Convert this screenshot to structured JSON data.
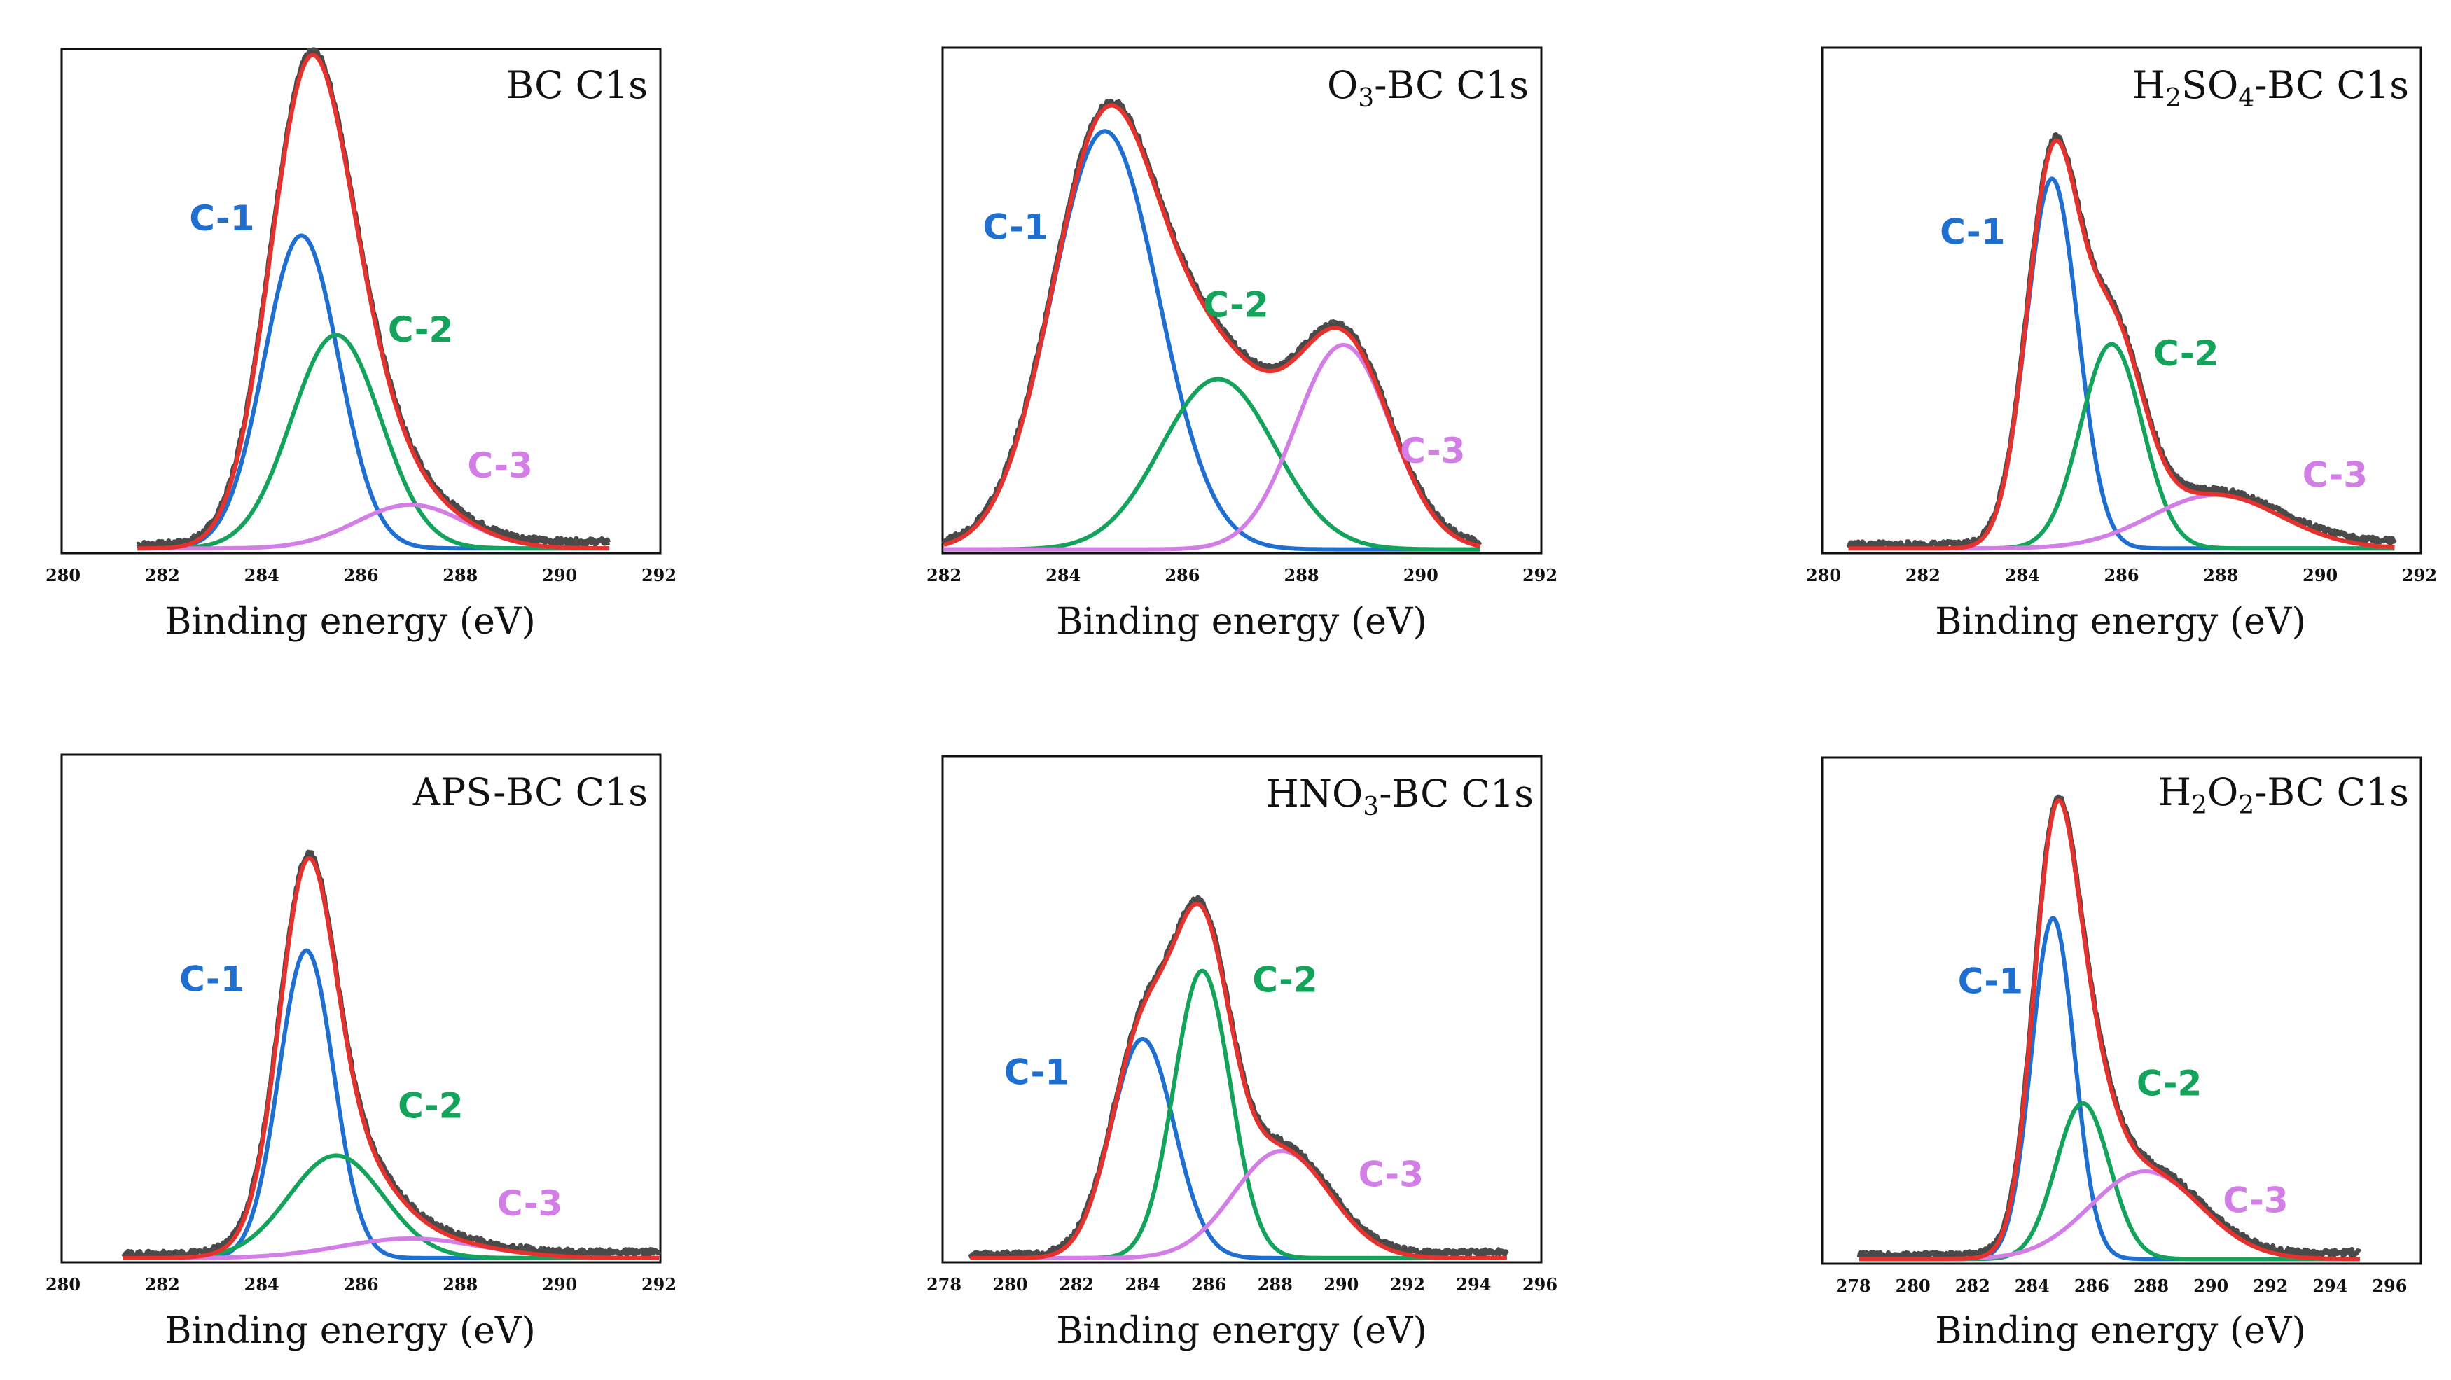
{
  "chart_data": [
    {
      "type": "line",
      "title_main": "BC C1s",
      "title_sub": "",
      "title_suffix": "",
      "xlabel": "Binding energy (eV)",
      "ylabel": "",
      "xlim": [
        280,
        292
      ],
      "ticks": [
        280,
        282,
        284,
        286,
        288,
        290,
        292
      ],
      "ylim": [
        0,
        1.0
      ],
      "xrange": [
        281.5,
        291
      ],
      "components": [
        {
          "name": "C-1",
          "color": "#1f6fd1",
          "center": 284.8,
          "height": 0.645,
          "sigma": 0.75,
          "label_at": [
            283.2,
            0.66
          ]
        },
        {
          "name": "C-2",
          "color": "#13a35a",
          "center": 285.5,
          "height": 0.44,
          "sigma": 0.9,
          "label_at": [
            287.2,
            0.43
          ]
        },
        {
          "name": "C-3",
          "color": "#d27ee6",
          "center": 287.0,
          "height": 0.09,
          "sigma": 1.1,
          "label_at": [
            288.8,
            0.15
          ]
        }
      ],
      "envelope_color": "#e5322d",
      "raw_color": "#4a4a4a",
      "baseline": 0.004,
      "tail": 0.006
    },
    {
      "type": "line",
      "title_main": "O",
      "title_sub": "3",
      "title_suffix": "-BC C1s",
      "xlabel": "Binding energy (eV)",
      "ylabel": "",
      "xlim": [
        282,
        292
      ],
      "ticks": [
        282,
        284,
        286,
        288,
        290,
        292
      ],
      "ylim": [
        0,
        1.0
      ],
      "xrange": [
        282,
        291
      ],
      "components": [
        {
          "name": "C-1",
          "color": "#1f6fd1",
          "center": 284.7,
          "height": 0.86,
          "sigma": 0.9,
          "label_at": [
            283.2,
            0.64
          ]
        },
        {
          "name": "C-2",
          "color": "#13a35a",
          "center": 286.6,
          "height": 0.35,
          "sigma": 0.95,
          "label_at": [
            286.9,
            0.48
          ]
        },
        {
          "name": "C-3",
          "color": "#d27ee6",
          "center": 288.7,
          "height": 0.42,
          "sigma": 0.8,
          "label_at": [
            290.2,
            0.18
          ]
        }
      ],
      "envelope_color": "#e5322d",
      "raw_color": "#4a4a4a",
      "baseline": 0.002,
      "tail": 0.0
    },
    {
      "type": "line",
      "title_main": "H",
      "title_sub": "2",
      "title_suffix": "SO",
      "title_sub2": "4",
      "title_suffix2": "-BC C1s",
      "xlabel": "Binding energy (eV)",
      "ylabel": "",
      "xlim": [
        280,
        292
      ],
      "ticks": [
        280,
        282,
        284,
        286,
        288,
        290,
        292
      ],
      "ylim": [
        0,
        1.0
      ],
      "xrange": [
        280.5,
        291.5
      ],
      "components": [
        {
          "name": "C-1",
          "color": "#1f6fd1",
          "center": 284.6,
          "height": 0.76,
          "sigma": 0.52,
          "label_at": [
            283.0,
            0.63
          ]
        },
        {
          "name": "C-2",
          "color": "#13a35a",
          "center": 285.8,
          "height": 0.42,
          "sigma": 0.62,
          "label_at": [
            287.3,
            0.38
          ]
        },
        {
          "name": "C-3",
          "color": "#d27ee6",
          "center": 287.9,
          "height": 0.11,
          "sigma": 1.3,
          "label_at": [
            290.3,
            0.13
          ]
        }
      ],
      "envelope_color": "#e5322d",
      "raw_color": "#4a4a4a",
      "baseline": 0.004,
      "tail": 0.004
    },
    {
      "type": "line",
      "title_main": "APS-BC C1s",
      "title_sub": "",
      "title_suffix": "",
      "xlabel": "Binding energy (eV)",
      "ylabel": "",
      "xlim": [
        280,
        292
      ],
      "ticks": [
        280,
        282,
        284,
        286,
        288,
        290,
        292
      ],
      "ylim": [
        0,
        1.0
      ],
      "xrange": [
        281.2,
        292
      ],
      "components": [
        {
          "name": "C-1",
          "color": "#1f6fd1",
          "center": 284.9,
          "height": 0.63,
          "sigma": 0.55,
          "label_at": [
            283.0,
            0.55
          ]
        },
        {
          "name": "C-2",
          "color": "#13a35a",
          "center": 285.5,
          "height": 0.21,
          "sigma": 0.95,
          "label_at": [
            287.4,
            0.29
          ]
        },
        {
          "name": "C-3",
          "color": "#d27ee6",
          "center": 287.0,
          "height": 0.04,
          "sigma": 1.4,
          "label_at": [
            289.4,
            0.09
          ]
        }
      ],
      "envelope_color": "#e5322d",
      "raw_color": "#4a4a4a",
      "baseline": 0.003,
      "tail": 0.004
    },
    {
      "type": "line",
      "title_main": "HNO",
      "title_sub": "3",
      "title_suffix": "-BC C1s",
      "xlabel": "Binding energy (eV)",
      "ylabel": "",
      "xlim": [
        278,
        296
      ],
      "ticks": [
        278,
        280,
        282,
        284,
        286,
        288,
        290,
        292,
        294,
        296
      ],
      "ylim": [
        0,
        1.0
      ],
      "xrange": [
        278.8,
        295
      ],
      "components": [
        {
          "name": "C-1",
          "color": "#1f6fd1",
          "center": 284.0,
          "height": 0.45,
          "sigma": 0.95,
          "label_at": [
            280.8,
            0.36
          ]
        },
        {
          "name": "C-2",
          "color": "#13a35a",
          "center": 285.8,
          "height": 0.59,
          "sigma": 0.85,
          "label_at": [
            288.3,
            0.55
          ]
        },
        {
          "name": "C-3",
          "color": "#d27ee6",
          "center": 288.2,
          "height": 0.22,
          "sigma": 1.45,
          "label_at": [
            291.5,
            0.15
          ]
        }
      ],
      "envelope_color": "#e5322d",
      "raw_color": "#4a4a4a",
      "baseline": 0.003,
      "tail": 0.004
    },
    {
      "type": "line",
      "title_main": "H",
      "title_sub": "2",
      "title_suffix": "O",
      "title_sub2": "2",
      "title_suffix2": "-BC C1s",
      "xlabel": "Binding energy (eV)",
      "ylabel": "",
      "xlim": [
        277,
        297
      ],
      "ticks": [
        278,
        280,
        282,
        284,
        286,
        288,
        290,
        292,
        294,
        296
      ],
      "ylim": [
        0,
        1.0
      ],
      "xrange": [
        278.2,
        295
      ],
      "components": [
        {
          "name": "C-1",
          "color": "#1f6fd1",
          "center": 284.7,
          "height": 0.7,
          "sigma": 0.72,
          "label_at": [
            282.6,
            0.55
          ]
        },
        {
          "name": "C-2",
          "color": "#13a35a",
          "center": 285.7,
          "height": 0.32,
          "sigma": 0.9,
          "label_at": [
            288.6,
            0.34
          ]
        },
        {
          "name": "C-3",
          "color": "#d27ee6",
          "center": 287.8,
          "height": 0.18,
          "sigma": 1.85,
          "label_at": [
            291.5,
            0.1
          ]
        }
      ],
      "envelope_color": "#e5322d",
      "raw_color": "#4a4a4a",
      "baseline": 0.004,
      "tail": 0.006
    }
  ]
}
